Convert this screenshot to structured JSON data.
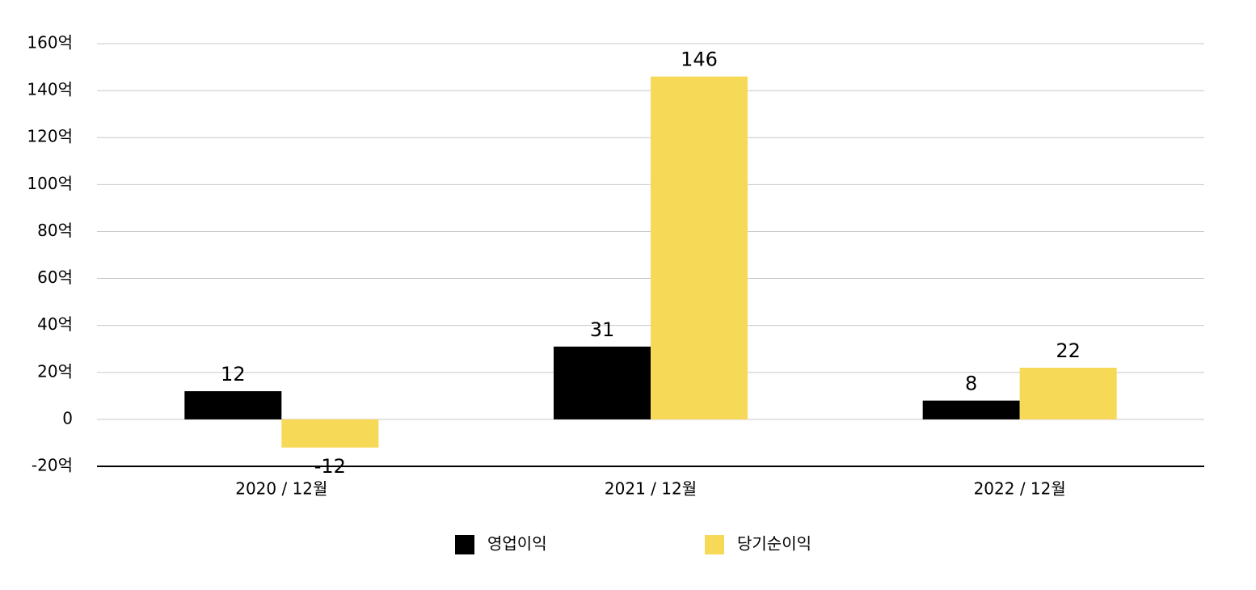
{
  "chart_data": {
    "type": "bar",
    "categories": [
      "2020 / 12월",
      "2021 / 12월",
      "2022 / 12월"
    ],
    "series": [
      {
        "name": "영업이익",
        "color": "#000000",
        "values": [
          12,
          31,
          8
        ]
      },
      {
        "name": "당기순이익",
        "color": "#f7d958",
        "values": [
          -12,
          146,
          22
        ]
      }
    ],
    "ylim": [
      -20,
      160
    ],
    "yticks": [
      {
        "value": -20,
        "label": "-20억"
      },
      0,
      {
        "value": 20,
        "label": "20억"
      },
      {
        "value": 40,
        "label": "40억"
      },
      {
        "value": 60,
        "label": "60억"
      },
      {
        "value": 80,
        "label": "80억"
      },
      {
        "value": 100,
        "label": "100억"
      },
      {
        "value": 120,
        "label": "120억"
      },
      {
        "value": 140,
        "label": "140억"
      },
      {
        "value": 160,
        "label": "160억"
      }
    ],
    "grid": true,
    "legend": "bottom"
  }
}
